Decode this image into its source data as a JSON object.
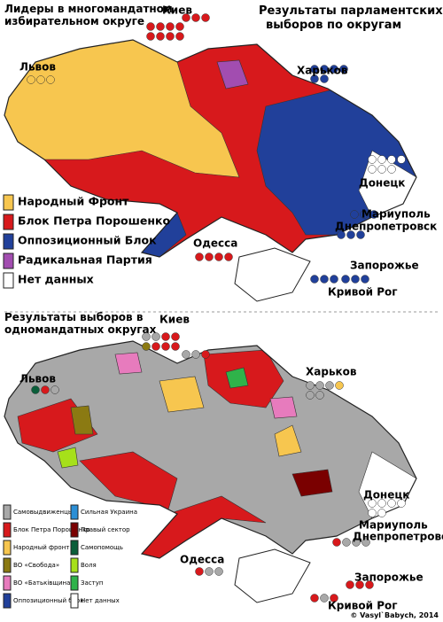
{
  "top_map": {
    "title": [
      "Лидеры в многомандатном",
      "избирательном округе"
    ],
    "subtitle": [
      "Результаты парламентских",
      "выборов по округам"
    ],
    "cities": [
      "Киев",
      "Львов",
      "Харьков",
      "Донецк",
      "Мариуполь",
      "Днепропетровск",
      "Одесса",
      "Запорожье",
      "Кривой Рог"
    ],
    "legend": [
      {
        "label": "Народный Фронт",
        "color": "#f7c64f"
      },
      {
        "label": "Блок Петра Порошенко",
        "color": "#d7191c"
      },
      {
        "label": "Оппозиционный Блок",
        "color": "#21409a"
      },
      {
        "label": "Радикальная Партия",
        "color": "#a24db0"
      },
      {
        "label": "Нет данных",
        "color": "#ffffff"
      }
    ]
  },
  "bottom_map": {
    "title": [
      "Результаты выборов в",
      "одномандатных округах"
    ],
    "cities": [
      "Киев",
      "Львов",
      "Харьков",
      "Донецк",
      "Мариуполь",
      "Днепропетровск",
      "Одесса",
      "Запорожье",
      "Кривой Рог"
    ],
    "legend": [
      {
        "label": "Самовыдвиженцы",
        "color": "#a8a8a8"
      },
      {
        "label": "Блок Петра Порошенко",
        "color": "#d7191c"
      },
      {
        "label": "Народный фронт",
        "color": "#f7c64f"
      },
      {
        "label": "ВО «Свобода»",
        "color": "#8b7a12"
      },
      {
        "label": "ВО «Батьківщина»",
        "color": "#e77bbd"
      },
      {
        "label": "Оппозиционный блок",
        "color": "#21409a"
      },
      {
        "label": "Сильная Украина",
        "color": "#2b8fd6"
      },
      {
        "label": "Правый сектор",
        "color": "#7a0000"
      },
      {
        "label": "Самопомощь",
        "color": "#0b5e3a"
      },
      {
        "label": "Воля",
        "color": "#a6e01a"
      },
      {
        "label": "Заступ",
        "color": "#2fb34a"
      },
      {
        "label": "Нет данных",
        "color": "#ffffff"
      }
    ]
  },
  "credit": "© Vasyl`Babych, 2014"
}
